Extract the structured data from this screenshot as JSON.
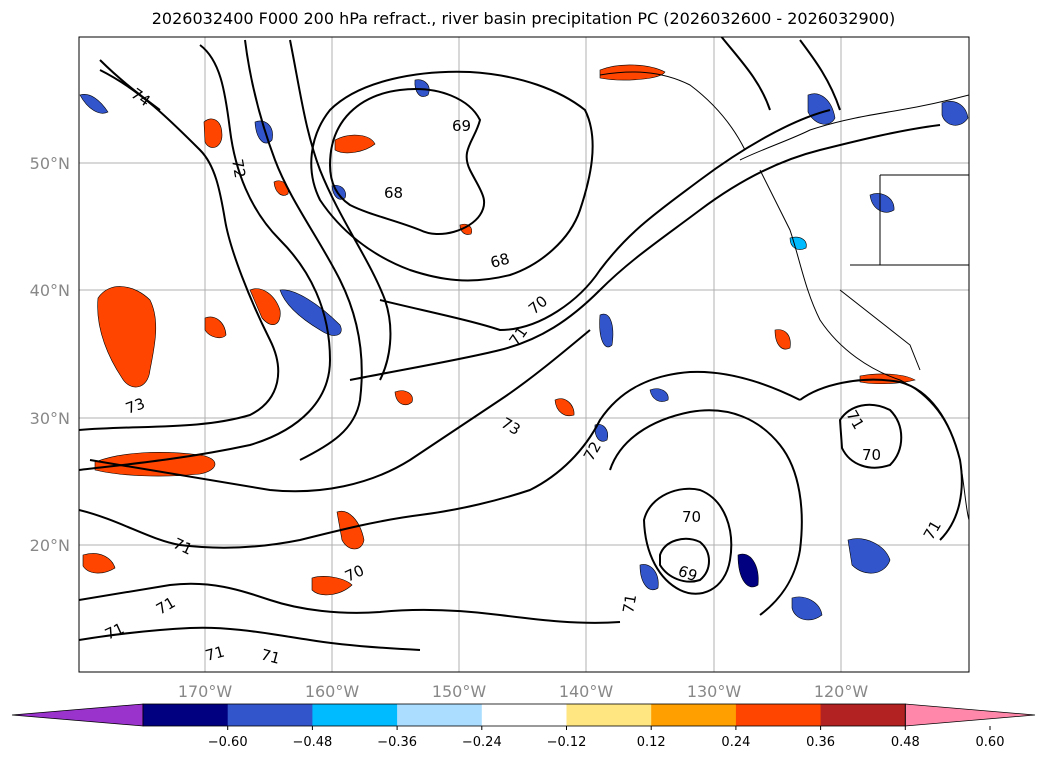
{
  "title": "2026032400 F000 200 hPa refract., river basin precipitation PC (2026032600 - 2026032900)",
  "lat_labels": [
    "50°N",
    "40°N",
    "30°N",
    "20°N"
  ],
  "lon_labels": [
    "170°W",
    "160°W",
    "150°W",
    "140°W",
    "130°W",
    "120°W"
  ],
  "contour_labels": [
    "74",
    "72",
    "69",
    "68",
    "68",
    "70",
    "71",
    "73",
    "73",
    "72",
    "70",
    "69",
    "71",
    "71",
    "70",
    "71",
    "71",
    "70",
    "71",
    "71",
    "71",
    "71"
  ],
  "colorbar": {
    "colors": [
      "#9933cc",
      "#000080",
      "#3355cc",
      "#00bbff",
      "#aaddff",
      "#ffffff",
      "#ffe680",
      "#ffa000",
      "#ff4500",
      "#b22222",
      "#ff88aa"
    ],
    "ticks": [
      "−0.60",
      "−0.48",
      "−0.36",
      "−0.24",
      "−0.12",
      "0.12",
      "0.24",
      "0.36",
      "0.48",
      "0.60"
    ]
  },
  "style": {
    "gridline_color": "#b0b0b0",
    "contour_color": "#000000",
    "positive_fill": "#ff4500",
    "negative_fill": "#3355cc"
  }
}
